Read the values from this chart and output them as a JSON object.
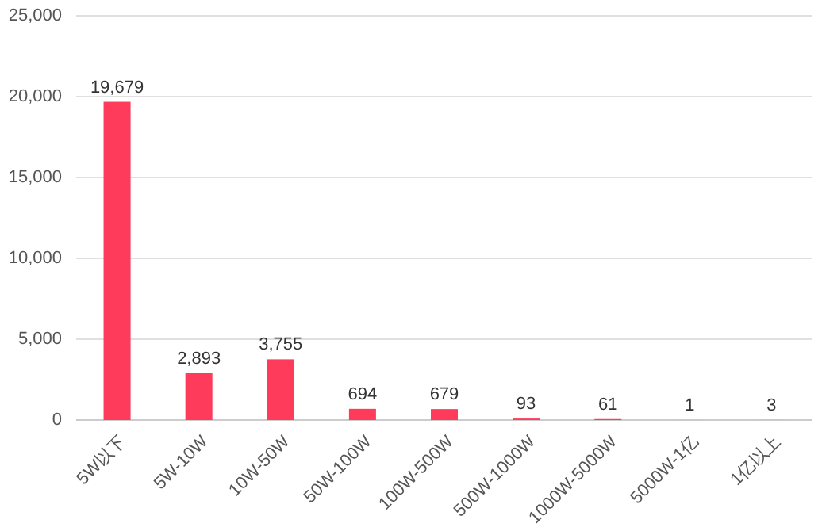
{
  "chart_data": {
    "type": "bar",
    "categories": [
      "5W以下",
      "5W-10W",
      "10W-50W",
      "50W-100W",
      "100W-500W",
      "500W-1000W",
      "1000W-5000W",
      "5000W-1亿",
      "1亿以上"
    ],
    "values": [
      19679,
      2893,
      3755,
      694,
      679,
      93,
      61,
      1,
      3
    ],
    "value_labels": [
      "19,679",
      "2,893",
      "3,755",
      "694",
      "679",
      "93",
      "61",
      "1",
      "3"
    ],
    "color": "#ff3b5c",
    "ylim": [
      0,
      25000
    ],
    "yticks": [
      0,
      {
        "value": 5000,
        "label": "5,000"
      },
      {
        "value": 10000,
        "label": "10,000"
      },
      {
        "value": 15000,
        "label": "15,000"
      },
      {
        "value": 20000,
        "label": "20,000"
      },
      {
        "value": 25000,
        "label": "25,000"
      }
    ],
    "grid": "y"
  }
}
